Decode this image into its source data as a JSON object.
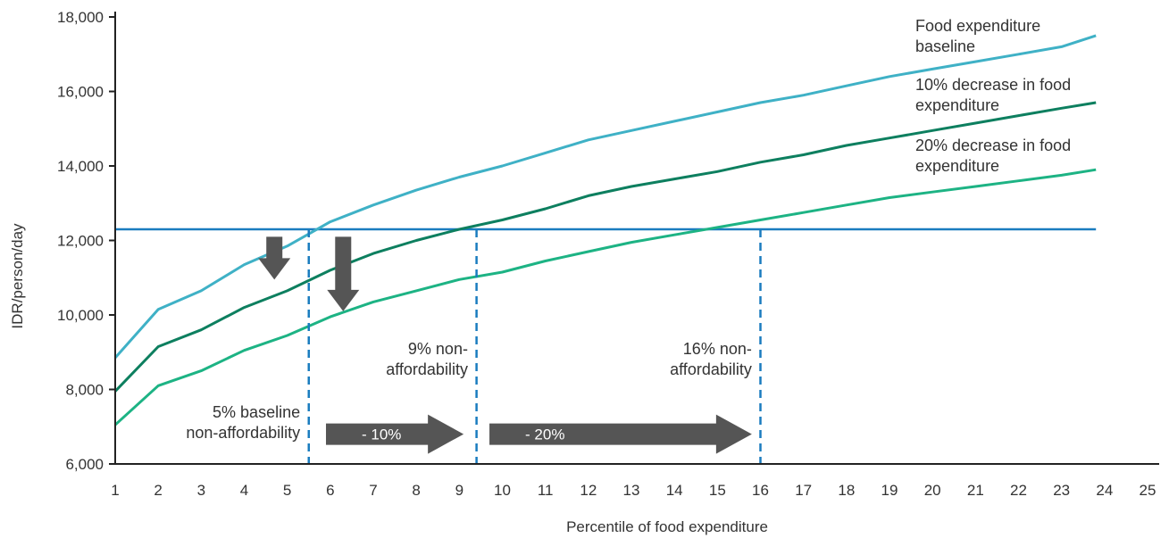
{
  "chart_data": {
    "type": "line",
    "title": "",
    "xlabel": "Percentile of food expenditure",
    "ylabel": "IDR/person/day",
    "xlim": [
      1,
      25
    ],
    "ylim": [
      6000,
      18000
    ],
    "x_ticks": [
      1,
      2,
      3,
      4,
      5,
      6,
      7,
      8,
      9,
      10,
      11,
      12,
      13,
      14,
      15,
      16,
      17,
      18,
      19,
      20,
      21,
      22,
      23,
      24,
      25
    ],
    "y_ticks": [
      6000,
      8000,
      10000,
      12000,
      14000,
      16000,
      18000
    ],
    "y_tick_labels": [
      "6,000",
      "8,000",
      "10,000",
      "12,000",
      "14,000",
      "16,000",
      "18,000"
    ],
    "grid": false,
    "legend": "inline labels at right end of lines",
    "series": [
      {
        "name": "Food expenditure baseline",
        "color": "#3fb1c6",
        "points": [
          [
            1,
            8850
          ],
          [
            2,
            10150
          ],
          [
            3,
            10650
          ],
          [
            4,
            11350
          ],
          [
            5,
            11850
          ],
          [
            6,
            12500
          ],
          [
            7,
            12950
          ],
          [
            8,
            13350
          ],
          [
            9,
            13700
          ],
          [
            10,
            14000
          ],
          [
            11,
            14350
          ],
          [
            12,
            14700
          ],
          [
            13,
            14950
          ],
          [
            14,
            15200
          ],
          [
            15,
            15450
          ],
          [
            16,
            15700
          ],
          [
            17,
            15900
          ],
          [
            18,
            16150
          ],
          [
            19,
            16400
          ],
          [
            20,
            16600
          ],
          [
            21,
            16800
          ],
          [
            22,
            17000
          ],
          [
            23,
            17200
          ],
          [
            23.8,
            17500
          ]
        ]
      },
      {
        "name": "10% decrease in food expenditure",
        "color": "#0d7f5f",
        "points": [
          [
            1,
            7950
          ],
          [
            2,
            9150
          ],
          [
            3,
            9600
          ],
          [
            4,
            10200
          ],
          [
            5,
            10650
          ],
          [
            6,
            11200
          ],
          [
            7,
            11650
          ],
          [
            8,
            12000
          ],
          [
            9,
            12300
          ],
          [
            10,
            12550
          ],
          [
            11,
            12850
          ],
          [
            12,
            13200
          ],
          [
            13,
            13450
          ],
          [
            14,
            13650
          ],
          [
            15,
            13850
          ],
          [
            16,
            14100
          ],
          [
            17,
            14300
          ],
          [
            18,
            14550
          ],
          [
            19,
            14750
          ],
          [
            20,
            14950
          ],
          [
            21,
            15150
          ],
          [
            22,
            15350
          ],
          [
            23,
            15550
          ],
          [
            23.8,
            15700
          ]
        ]
      },
      {
        "name": "20% decrease in food expenditure",
        "color": "#1db384",
        "points": [
          [
            1,
            7050
          ],
          [
            2,
            8100
          ],
          [
            3,
            8500
          ],
          [
            4,
            9050
          ],
          [
            5,
            9450
          ],
          [
            6,
            9950
          ],
          [
            7,
            10350
          ],
          [
            8,
            10650
          ],
          [
            9,
            10950
          ],
          [
            10,
            11150
          ],
          [
            11,
            11450
          ],
          [
            12,
            11700
          ],
          [
            13,
            11950
          ],
          [
            14,
            12150
          ],
          [
            15,
            12350
          ],
          [
            16,
            12550
          ],
          [
            17,
            12750
          ],
          [
            18,
            12950
          ],
          [
            19,
            13150
          ],
          [
            20,
            13300
          ],
          [
            21,
            13450
          ],
          [
            22,
            13600
          ],
          [
            23,
            13750
          ],
          [
            23.8,
            13900
          ]
        ]
      }
    ],
    "threshold": {
      "value": 12300,
      "color": "#1a7cbf",
      "x_range": [
        1,
        23.8
      ]
    },
    "dividers": [
      {
        "x": 5.5,
        "color": "#1a7cbf"
      },
      {
        "x": 9.4,
        "color": "#1a7cbf"
      },
      {
        "x": 16,
        "color": "#1a7cbf"
      }
    ],
    "annotations": [
      {
        "lines": [
          "5% baseline",
          "non-affordability"
        ],
        "anchor_x": 5.3,
        "anchor_y": 6700,
        "align": "end"
      },
      {
        "lines": [
          "9% non-",
          "affordability"
        ],
        "anchor_x": 9.2,
        "anchor_y": 8400,
        "align": "end"
      },
      {
        "lines": [
          "16% non-",
          "affordability"
        ],
        "anchor_x": 15.8,
        "anchor_y": 8400,
        "align": "end"
      }
    ],
    "reduction_arrows": [
      {
        "label": "- 10%",
        "x_start": 5.9,
        "x_end": 9.1,
        "y": 6800,
        "color": "#555555"
      },
      {
        "label": "- 20%",
        "x_start": 9.7,
        "x_end": 15.8,
        "y": 6800,
        "color": "#555555"
      }
    ],
    "drop_arrows": [
      {
        "x": 4.7,
        "y_top": 12100,
        "y_bottom": 10950,
        "color": "#555555"
      },
      {
        "x": 6.3,
        "y_top": 12100,
        "y_bottom": 10100,
        "color": "#555555"
      }
    ],
    "series_labels": [
      {
        "series": 0,
        "lines": [
          "Food expenditure",
          "baseline"
        ]
      },
      {
        "series": 1,
        "lines": [
          "10% decrease in food",
          "expenditure"
        ]
      },
      {
        "series": 2,
        "lines": [
          "20% decrease in food",
          "expenditure"
        ]
      }
    ]
  }
}
